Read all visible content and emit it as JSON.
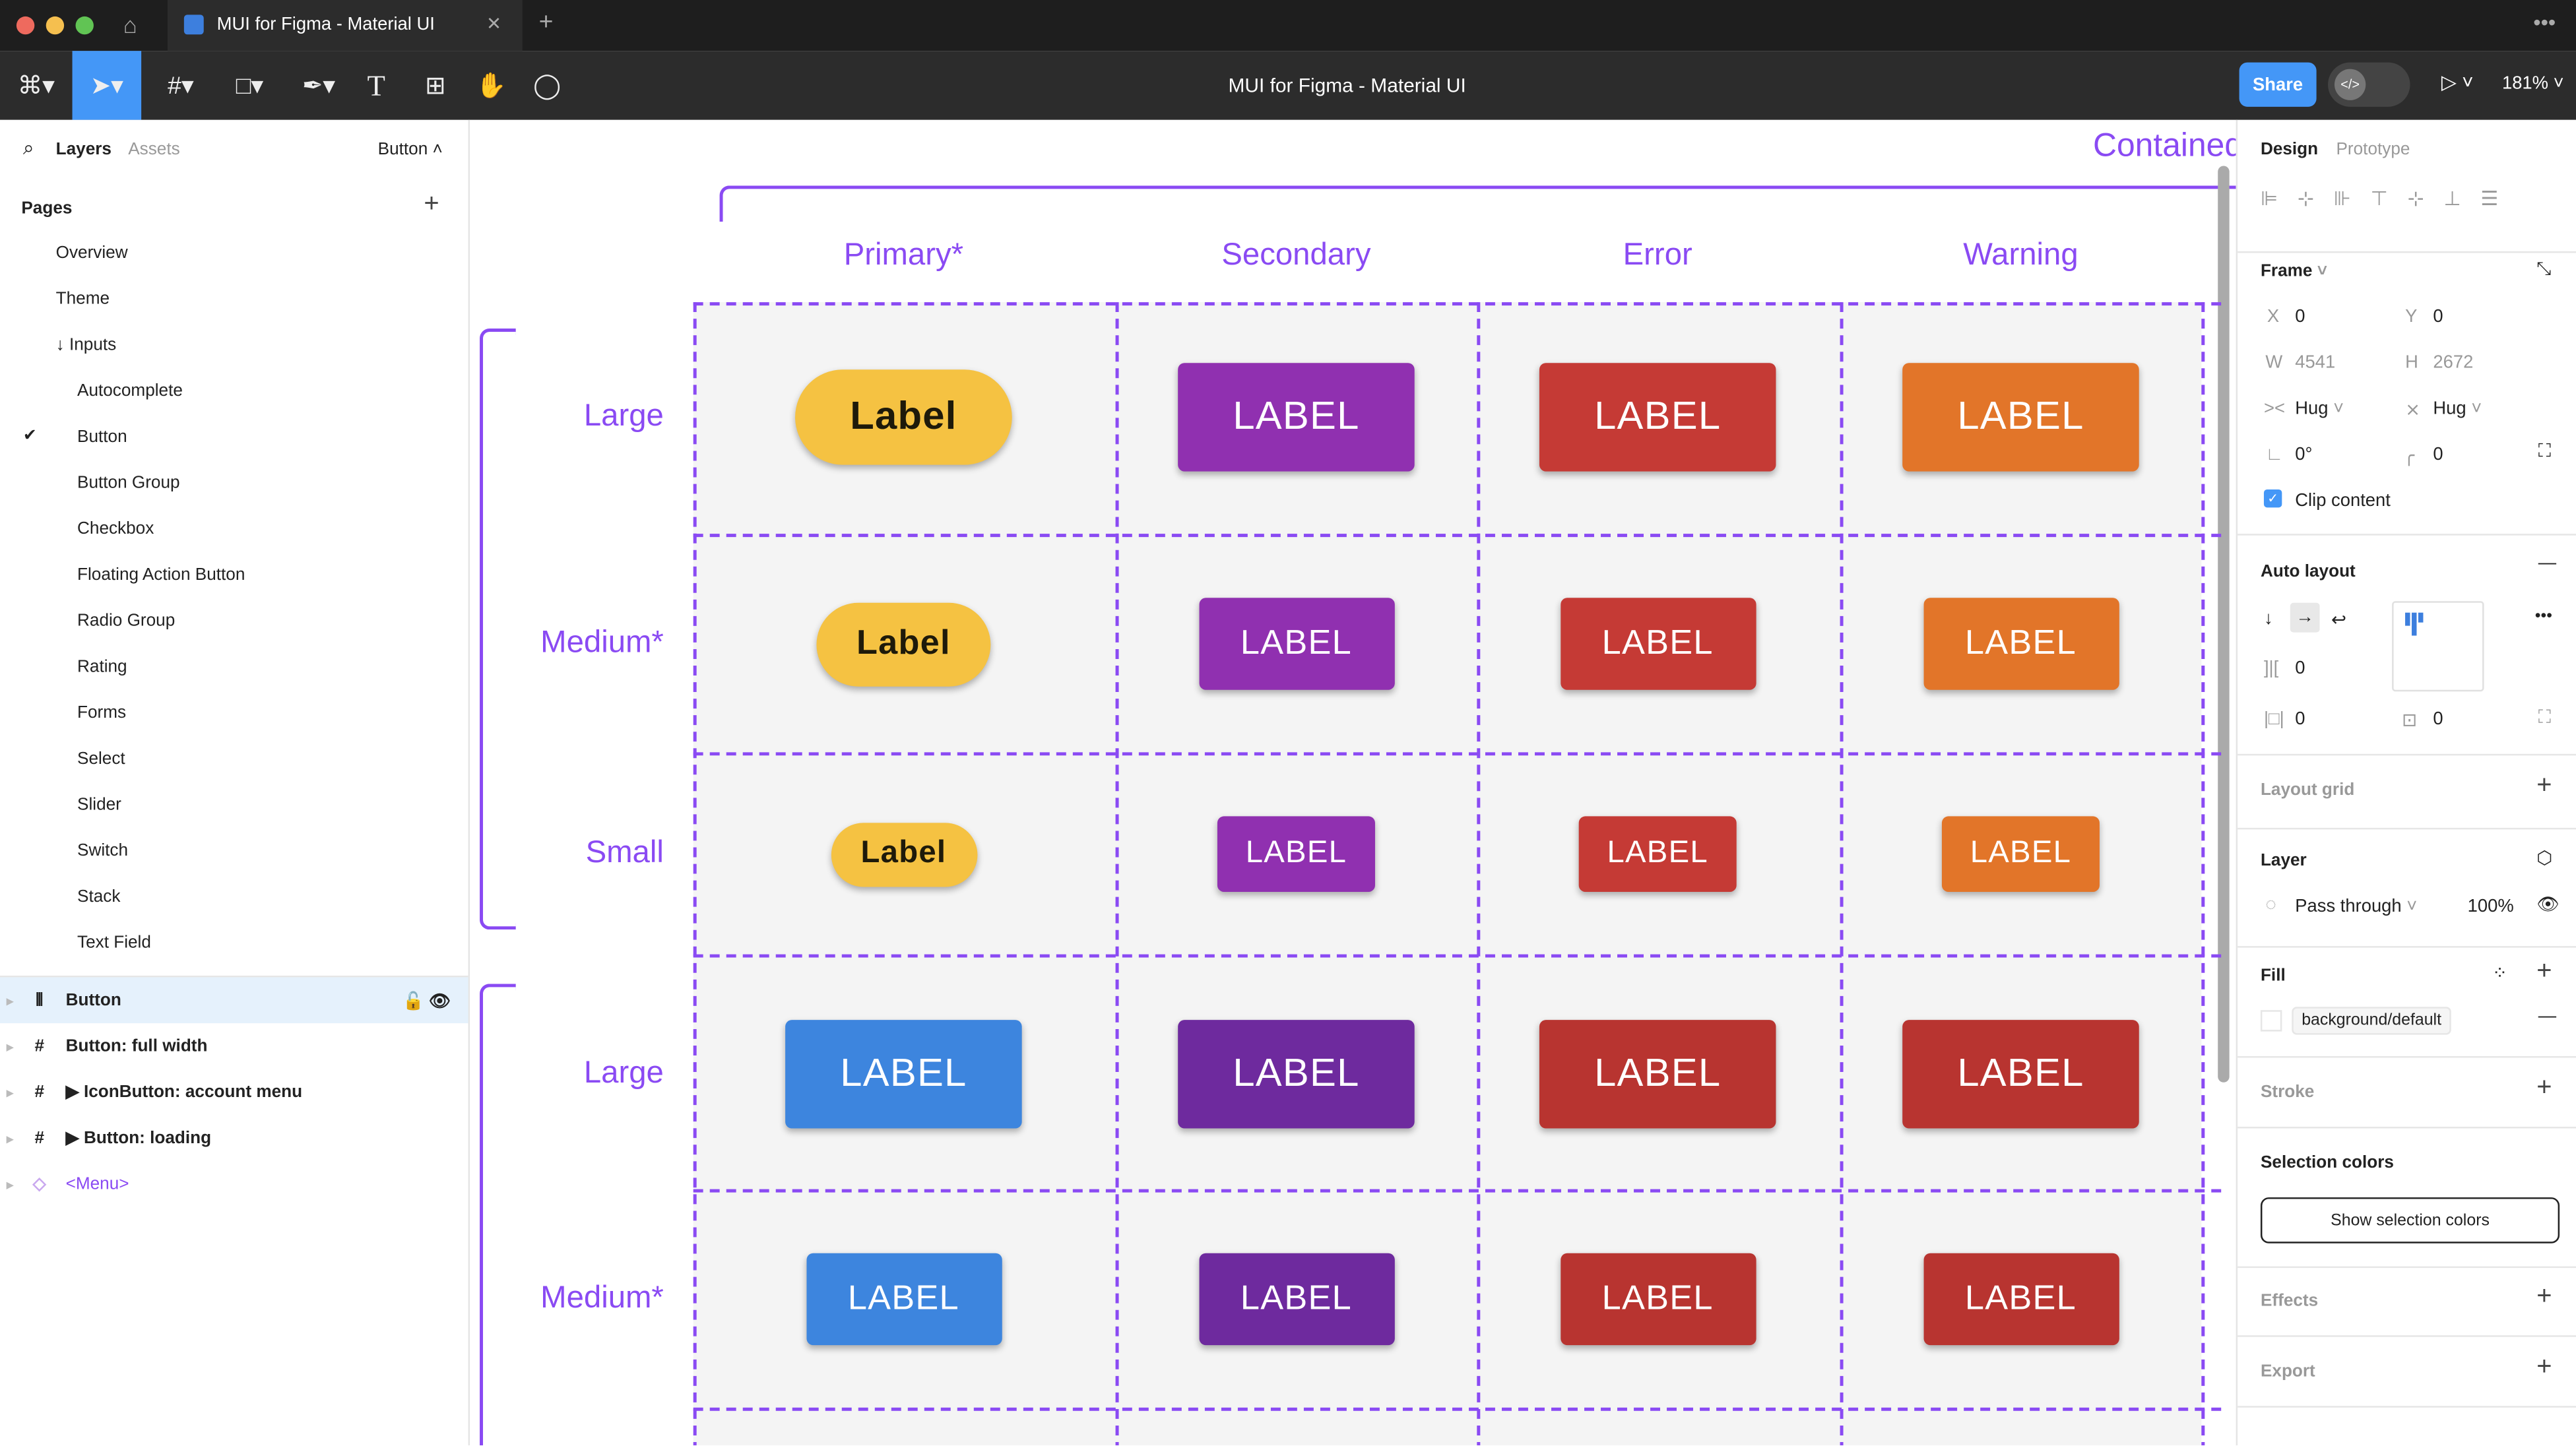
{
  "window": {
    "tab_title": "MUI for Figma - Material UI",
    "file_title": "MUI for Figma - Material UI",
    "share": "Share",
    "zoom": "181%"
  },
  "colors": {
    "accent": "#4497f7",
    "guide": "#8a4af3",
    "primary_yellow": "#f5c242",
    "secondary": "#9030b0",
    "error": "#c53a35",
    "warning": "#e27529",
    "blue": "#3d85de",
    "secondary_dark": "#6e2a9e",
    "error_dark": "#b83430"
  },
  "left": {
    "tab_layers": "Layers",
    "tab_assets": "Assets",
    "page_selector": "Button",
    "pages_title": "Pages",
    "pages": [
      {
        "label": "Overview"
      },
      {
        "label": "Theme"
      },
      {
        "label": "↓ Inputs"
      },
      {
        "label": "Autocomplete"
      },
      {
        "label": "Button",
        "checked": true
      },
      {
        "label": "Button Group"
      },
      {
        "label": "Checkbox"
      },
      {
        "label": "Floating Action Button"
      },
      {
        "label": "Radio Group"
      },
      {
        "label": "Rating"
      },
      {
        "label": "Forms"
      },
      {
        "label": "Select"
      },
      {
        "label": "Slider"
      },
      {
        "label": "Switch"
      },
      {
        "label": "Stack"
      },
      {
        "label": "Text Field"
      }
    ],
    "layers": [
      {
        "label": "Button",
        "icon": "auto-layout-icon",
        "selected": true
      },
      {
        "label": "Button: full width",
        "icon": "frame-icon"
      },
      {
        "label": "▶ IconButton: account menu",
        "icon": "frame-icon"
      },
      {
        "label": "▶ Button: loading",
        "icon": "frame-icon"
      },
      {
        "label": "<Menu>",
        "icon": "component-icon",
        "component": true
      }
    ]
  },
  "canvas": {
    "section_title": "Contained",
    "columns": [
      "Primary*",
      "Secondary",
      "Error",
      "Warning"
    ],
    "rows": [
      {
        "label": "Large",
        "cells": [
          {
            "text": "Label",
            "color": "#f5c242",
            "pill": true
          },
          {
            "text": "LABEL",
            "color": "#9030b0"
          },
          {
            "text": "LABEL",
            "color": "#c53a35"
          },
          {
            "text": "LABEL",
            "color": "#e27529"
          }
        ]
      },
      {
        "label": "Medium*",
        "cells": [
          {
            "text": "Label",
            "color": "#f5c242",
            "pill": true
          },
          {
            "text": "LABEL",
            "color": "#9030b0"
          },
          {
            "text": "LABEL",
            "color": "#c53a35"
          },
          {
            "text": "LABEL",
            "color": "#e27529"
          }
        ]
      },
      {
        "label": "Small",
        "cells": [
          {
            "text": "Label",
            "color": "#f5c242",
            "pill": true
          },
          {
            "text": "LABEL",
            "color": "#9030b0"
          },
          {
            "text": "LABEL",
            "color": "#c53a35"
          },
          {
            "text": "LABEL",
            "color": "#e27529"
          }
        ]
      },
      {
        "label": "Large",
        "cells": [
          {
            "text": "LABEL",
            "color": "#3d85de"
          },
          {
            "text": "LABEL",
            "color": "#6e2a9e"
          },
          {
            "text": "LABEL",
            "color": "#b83430"
          },
          {
            "text": "LABEL",
            "color": "#b83430"
          }
        ]
      },
      {
        "label": "Medium*",
        "cells": [
          {
            "text": "LABEL",
            "color": "#3d85de"
          },
          {
            "text": "LABEL",
            "color": "#6e2a9e"
          },
          {
            "text": "LABEL",
            "color": "#b83430"
          },
          {
            "text": "LABEL",
            "color": "#b83430"
          }
        ]
      }
    ]
  },
  "right": {
    "tab_design": "Design",
    "tab_prototype": "Prototype",
    "frame": {
      "title": "Frame",
      "x_label": "X",
      "x": "0",
      "y_label": "Y",
      "y": "0",
      "w_label": "W",
      "w": "4541",
      "h_label": "H",
      "h": "2672",
      "width_mode": "Hug",
      "height_mode": "Hug",
      "rotation": "0°",
      "radius": "0",
      "clip_content": "Clip content",
      "clip_checked": true
    },
    "auto_layout": {
      "title": "Auto layout",
      "gap": "0",
      "pad_h": "0",
      "pad_v": "0"
    },
    "layout_grid": "Layout grid",
    "layer": {
      "title": "Layer",
      "blend": "Pass through",
      "opacity": "100%"
    },
    "fill": {
      "title": "Fill",
      "style": "background/default"
    },
    "stroke": "Stroke",
    "selection_colors": "Selection colors",
    "show_selection_colors": "Show selection colors",
    "effects": "Effects",
    "export": "Export"
  }
}
